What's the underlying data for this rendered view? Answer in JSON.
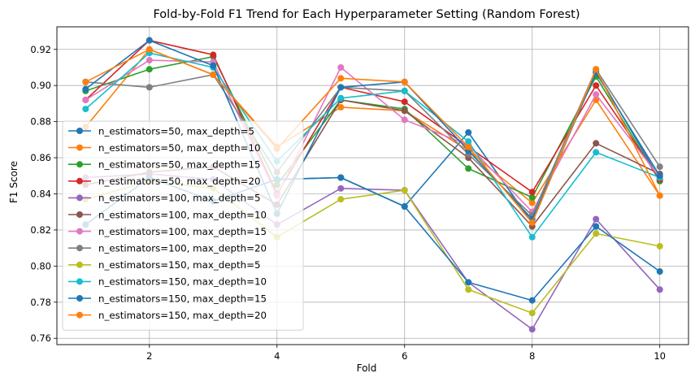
{
  "chart_data": {
    "type": "line",
    "title": "Fold-by-Fold F1 Trend for Each Hyperparameter Setting (Random Forest)",
    "xlabel": "Fold",
    "ylabel": "F1 Score",
    "x": [
      1,
      2,
      3,
      4,
      5,
      6,
      7,
      8,
      9,
      10
    ],
    "xlim": [
      0.55,
      10.45
    ],
    "ylim": [
      0.7565,
      0.9325
    ],
    "xticks": [
      2,
      4,
      6,
      8,
      10
    ],
    "xtick_labels": [
      "2",
      "4",
      "6",
      "8",
      "10"
    ],
    "yticks": [
      0.76,
      0.78,
      0.8,
      0.82,
      0.84,
      0.86,
      0.88,
      0.9,
      0.92
    ],
    "ytick_labels": [
      "0.76",
      "0.78",
      "0.80",
      "0.82",
      "0.84",
      "0.86",
      "0.88",
      "0.90",
      "0.92"
    ],
    "grid": true,
    "legend_position": "lower-left",
    "series": [
      {
        "name": "n_estimators=50, max_depth=5",
        "color": "#1f77b4",
        "values": [
          0.823,
          0.849,
          0.836,
          0.848,
          0.849,
          0.833,
          0.874,
          0.824,
          0.908,
          0.848
        ]
      },
      {
        "name": "n_estimators=50, max_depth=10",
        "color": "#ff7f0e",
        "values": [
          0.877,
          0.92,
          0.906,
          0.866,
          0.888,
          0.886,
          0.864,
          0.835,
          0.892,
          0.839
        ]
      },
      {
        "name": "n_estimators=50, max_depth=15",
        "color": "#2ca02c",
        "values": [
          0.897,
          0.909,
          0.916,
          0.845,
          0.892,
          0.887,
          0.854,
          0.838,
          0.905,
          0.847
        ]
      },
      {
        "name": "n_estimators=50, max_depth=20",
        "color": "#d62728",
        "values": [
          0.892,
          0.925,
          0.917,
          0.84,
          0.899,
          0.891,
          0.866,
          0.841,
          0.9,
          0.848
        ]
      },
      {
        "name": "n_estimators=100, max_depth=5",
        "color": "#9467bd",
        "values": [
          0.849,
          0.851,
          0.848,
          0.823,
          0.843,
          0.842,
          0.791,
          0.765,
          0.826,
          0.787
        ]
      },
      {
        "name": "n_estimators=100, max_depth=10",
        "color": "#8c564b",
        "values": [
          0.845,
          0.852,
          0.855,
          0.834,
          0.892,
          0.886,
          0.86,
          0.822,
          0.868,
          0.851
        ]
      },
      {
        "name": "n_estimators=100, max_depth=15",
        "color": "#e377c2",
        "values": [
          0.892,
          0.914,
          0.913,
          0.839,
          0.91,
          0.881,
          0.867,
          0.83,
          0.895,
          0.849
        ]
      },
      {
        "name": "n_estimators=100, max_depth=20",
        "color": "#7f7f7f",
        "values": [
          0.902,
          0.899,
          0.906,
          0.852,
          0.899,
          0.897,
          0.862,
          0.828,
          0.909,
          0.855
        ]
      },
      {
        "name": "n_estimators=150, max_depth=5",
        "color": "#bcbd22",
        "values": [
          0.837,
          0.847,
          0.843,
          0.816,
          0.837,
          0.842,
          0.787,
          0.774,
          0.818,
          0.811
        ]
      },
      {
        "name": "n_estimators=150, max_depth=10",
        "color": "#17becf",
        "values": [
          0.887,
          0.918,
          0.91,
          0.858,
          0.893,
          0.897,
          0.869,
          0.816,
          0.863,
          0.849
        ]
      },
      {
        "name": "n_estimators=150, max_depth=15",
        "color": "#1f77b4",
        "values": [
          0.898,
          0.925,
          0.911,
          0.829,
          0.899,
          0.902,
          0.864,
          0.826,
          0.907,
          0.85
        ]
      },
      {
        "name": "n_estimators=150, max_depth=20",
        "color": "#ff7f0e",
        "values": [
          0.902,
          0.92,
          0.906,
          0.865,
          0.904,
          0.902,
          0.866,
          0.824,
          0.909,
          0.839
        ]
      }
    ],
    "trailing_series": {
      "color": "#1f77b4",
      "values": [
        0.823,
        0.849,
        0.836,
        0.848,
        0.849,
        0.833,
        0.791,
        0.781,
        0.822,
        0.797
      ]
    }
  }
}
